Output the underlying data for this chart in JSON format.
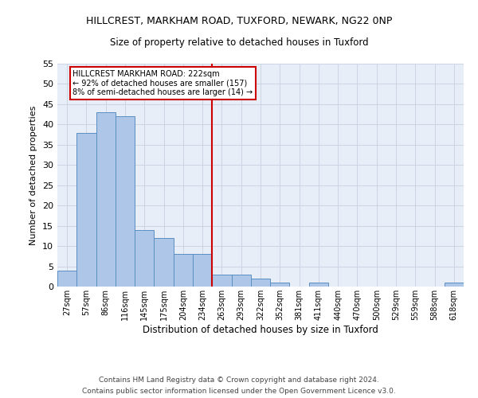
{
  "title1": "HILLCREST, MARKHAM ROAD, TUXFORD, NEWARK, NG22 0NP",
  "title2": "Size of property relative to detached houses in Tuxford",
  "xlabel": "Distribution of detached houses by size in Tuxford",
  "ylabel": "Number of detached properties",
  "bar_labels": [
    "27sqm",
    "57sqm",
    "86sqm",
    "116sqm",
    "145sqm",
    "175sqm",
    "204sqm",
    "234sqm",
    "263sqm",
    "293sqm",
    "322sqm",
    "352sqm",
    "381sqm",
    "411sqm",
    "440sqm",
    "470sqm",
    "500sqm",
    "529sqm",
    "559sqm",
    "588sqm",
    "618sqm"
  ],
  "bar_values": [
    4,
    38,
    43,
    42,
    14,
    12,
    8,
    8,
    3,
    3,
    2,
    1,
    0,
    1,
    0,
    0,
    0,
    0,
    0,
    0,
    1
  ],
  "bar_color": "#aec6e8",
  "bar_edgecolor": "#5a8fc2",
  "vline_x": 7.5,
  "vline_color": "#cc0000",
  "annotation_text": "HILLCREST MARKHAM ROAD: 222sqm\n← 92% of detached houses are smaller (157)\n8% of semi-detached houses are larger (14) →",
  "annotation_box_color": "#ffffff",
  "annotation_box_edgecolor": "#cc0000",
  "ylim": [
    0,
    55
  ],
  "yticks": [
    0,
    5,
    10,
    15,
    20,
    25,
    30,
    35,
    40,
    45,
    50,
    55
  ],
  "background_color": "#e8eef8",
  "footer1": "Contains HM Land Registry data © Crown copyright and database right 2024.",
  "footer2": "Contains public sector information licensed under the Open Government Licence v3.0."
}
